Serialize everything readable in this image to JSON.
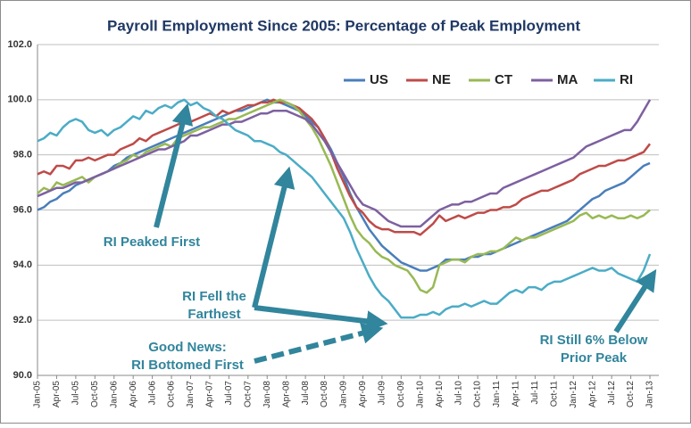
{
  "chart_data": {
    "type": "line",
    "title": "Payroll Employment Since 2005: Percentage of Peak Employment",
    "categories": [
      "Jan-05",
      null,
      null,
      "Apr-05",
      null,
      null,
      "Jul-05",
      null,
      null,
      "Oct-05",
      null,
      null,
      "Jan-06",
      null,
      null,
      "Apr-06",
      null,
      null,
      "Jul-06",
      null,
      null,
      "Oct-06",
      null,
      null,
      "Jan-07",
      null,
      null,
      "Apr-07",
      null,
      null,
      "Jul-07",
      null,
      null,
      "Oct-07",
      null,
      null,
      "Jan-08",
      null,
      null,
      "Apr-08",
      null,
      null,
      "Jul-08",
      null,
      null,
      "Oct-08",
      null,
      null,
      "Jan-09",
      null,
      null,
      "Apr-09",
      null,
      null,
      "Jul-09",
      null,
      null,
      "Oct-09",
      null,
      null,
      "Jan-10",
      null,
      null,
      "Apr-10",
      null,
      null,
      "Jul-10",
      null,
      null,
      "Oct-10",
      null,
      null,
      "Jan-11",
      null,
      null,
      "Apr-11",
      null,
      null,
      "Jul-11",
      null,
      null,
      "Oct-11",
      null,
      null,
      "Jan-12",
      null,
      null,
      "Apr-12",
      null,
      null,
      "Jul-12",
      null,
      null,
      "Oct-12",
      null,
      null,
      "Jan-13"
    ],
    "series": [
      {
        "name": "US",
        "color": "#4a7ebb",
        "values": [
          96.0,
          96.1,
          96.3,
          96.4,
          96.6,
          96.7,
          96.9,
          97.0,
          97.1,
          97.2,
          97.3,
          97.4,
          97.6,
          97.7,
          97.9,
          98.0,
          98.1,
          98.2,
          98.3,
          98.4,
          98.5,
          98.6,
          98.7,
          98.8,
          98.9,
          99.0,
          99.1,
          99.2,
          99.3,
          99.4,
          99.5,
          99.6,
          99.6,
          99.7,
          99.8,
          99.9,
          100.0,
          99.9,
          99.9,
          99.8,
          99.7,
          99.6,
          99.4,
          99.2,
          99.0,
          98.6,
          98.2,
          97.7,
          97.2,
          96.6,
          96.1,
          95.7,
          95.3,
          95.0,
          94.7,
          94.5,
          94.3,
          94.1,
          94.0,
          93.9,
          93.8,
          93.8,
          93.9,
          94.0,
          94.2,
          94.2,
          94.2,
          94.2,
          94.3,
          94.3,
          94.4,
          94.4,
          94.5,
          94.6,
          94.7,
          94.8,
          94.9,
          95.0,
          95.1,
          95.2,
          95.3,
          95.4,
          95.5,
          95.6,
          95.8,
          96.0,
          96.2,
          96.4,
          96.5,
          96.7,
          96.8,
          96.9,
          97.0,
          97.2,
          97.4,
          97.6,
          97.7
        ]
      },
      {
        "name": "NE",
        "color": "#be4b48",
        "values": [
          97.3,
          97.4,
          97.3,
          97.6,
          97.6,
          97.5,
          97.8,
          97.8,
          97.9,
          97.8,
          97.9,
          98.0,
          98.0,
          98.2,
          98.3,
          98.4,
          98.6,
          98.5,
          98.7,
          98.8,
          98.9,
          99.0,
          99.1,
          99.2,
          99.2,
          99.3,
          99.4,
          99.5,
          99.4,
          99.6,
          99.5,
          99.6,
          99.7,
          99.8,
          99.8,
          99.9,
          99.9,
          100.0,
          99.9,
          99.9,
          99.8,
          99.7,
          99.5,
          99.3,
          99.0,
          98.6,
          98.1,
          97.5,
          97.0,
          96.5,
          96.1,
          95.9,
          95.6,
          95.4,
          95.3,
          95.3,
          95.2,
          95.2,
          95.2,
          95.2,
          95.1,
          95.3,
          95.5,
          95.8,
          95.6,
          95.7,
          95.8,
          95.7,
          95.8,
          95.9,
          95.9,
          96.0,
          96.0,
          96.1,
          96.1,
          96.2,
          96.4,
          96.5,
          96.6,
          96.7,
          96.7,
          96.8,
          96.9,
          97.0,
          97.1,
          97.3,
          97.4,
          97.5,
          97.6,
          97.6,
          97.7,
          97.8,
          97.8,
          97.9,
          98.0,
          98.1,
          98.4
        ]
      },
      {
        "name": "CT",
        "color": "#98b954",
        "values": [
          96.6,
          96.8,
          96.7,
          97.0,
          96.9,
          97.0,
          97.1,
          97.2,
          97.0,
          97.2,
          97.3,
          97.4,
          97.5,
          97.7,
          97.8,
          98.0,
          97.9,
          98.1,
          98.2,
          98.3,
          98.4,
          98.3,
          98.6,
          98.7,
          98.8,
          98.9,
          99.0,
          99.0,
          99.1,
          99.2,
          99.3,
          99.3,
          99.4,
          99.5,
          99.6,
          99.7,
          99.8,
          99.9,
          100.0,
          99.9,
          99.8,
          99.6,
          99.3,
          99.0,
          98.6,
          98.1,
          97.6,
          97.0,
          96.4,
          95.8,
          95.3,
          95.0,
          94.8,
          94.5,
          94.3,
          94.2,
          94.0,
          93.9,
          93.8,
          93.5,
          93.1,
          93.0,
          93.2,
          94.0,
          94.1,
          94.2,
          94.2,
          94.1,
          94.3,
          94.4,
          94.4,
          94.5,
          94.5,
          94.6,
          94.8,
          95.0,
          94.9,
          95.0,
          95.0,
          95.1,
          95.2,
          95.3,
          95.4,
          95.5,
          95.6,
          95.8,
          95.9,
          95.7,
          95.8,
          95.7,
          95.8,
          95.7,
          95.7,
          95.8,
          95.7,
          95.8,
          96.0
        ]
      },
      {
        "name": "MA",
        "color": "#7d60a0",
        "values": [
          96.5,
          96.6,
          96.7,
          96.8,
          96.8,
          96.9,
          97.0,
          97.0,
          97.1,
          97.2,
          97.3,
          97.4,
          97.5,
          97.6,
          97.7,
          97.8,
          97.9,
          98.0,
          98.1,
          98.2,
          98.2,
          98.3,
          98.4,
          98.5,
          98.7,
          98.7,
          98.8,
          98.9,
          99.0,
          99.1,
          99.1,
          99.2,
          99.2,
          99.3,
          99.4,
          99.5,
          99.5,
          99.6,
          99.6,
          99.6,
          99.5,
          99.4,
          99.3,
          99.1,
          98.8,
          98.5,
          98.1,
          97.7,
          97.3,
          96.9,
          96.5,
          96.2,
          96.1,
          96.0,
          95.8,
          95.6,
          95.5,
          95.4,
          95.4,
          95.4,
          95.4,
          95.6,
          95.8,
          96.0,
          96.1,
          96.2,
          96.2,
          96.3,
          96.3,
          96.4,
          96.5,
          96.6,
          96.6,
          96.8,
          96.9,
          97.0,
          97.1,
          97.2,
          97.3,
          97.4,
          97.5,
          97.6,
          97.7,
          97.8,
          97.9,
          98.1,
          98.3,
          98.4,
          98.5,
          98.6,
          98.7,
          98.8,
          98.9,
          98.9,
          99.2,
          99.6,
          100.0
        ]
      },
      {
        "name": "RI",
        "color": "#4bacc6",
        "values": [
          98.5,
          98.6,
          98.8,
          98.7,
          99.0,
          99.2,
          99.3,
          99.2,
          98.9,
          98.8,
          98.9,
          98.7,
          98.9,
          99.0,
          99.2,
          99.4,
          99.3,
          99.6,
          99.5,
          99.7,
          99.8,
          99.7,
          99.9,
          100.0,
          99.8,
          99.9,
          99.7,
          99.6,
          99.4,
          99.3,
          99.1,
          98.9,
          98.8,
          98.7,
          98.5,
          98.5,
          98.4,
          98.3,
          98.1,
          98.0,
          97.8,
          97.6,
          97.4,
          97.2,
          96.9,
          96.6,
          96.3,
          96.0,
          95.7,
          95.2,
          94.6,
          94.1,
          93.6,
          93.2,
          92.9,
          92.7,
          92.4,
          92.1,
          92.1,
          92.1,
          92.2,
          92.2,
          92.3,
          92.2,
          92.4,
          92.5,
          92.5,
          92.6,
          92.5,
          92.6,
          92.7,
          92.6,
          92.6,
          92.8,
          93.0,
          93.1,
          93.0,
          93.2,
          93.2,
          93.1,
          93.3,
          93.4,
          93.4,
          93.5,
          93.6,
          93.7,
          93.8,
          93.9,
          93.8,
          93.8,
          93.9,
          93.7,
          93.6,
          93.5,
          93.4,
          93.8,
          94.4
        ]
      }
    ],
    "ylim": [
      90,
      102
    ],
    "yticks": [
      {
        "value": 90,
        "label": "90.0"
      },
      {
        "value": 92,
        "label": "92.0"
      },
      {
        "value": 94,
        "label": "94.0"
      },
      {
        "value": 96,
        "label": "96.0"
      },
      {
        "value": 98,
        "label": "98.0"
      },
      {
        "value": 100,
        "label": "100.0"
      },
      {
        "value": 102,
        "label": "102.0"
      }
    ],
    "grid": true,
    "legend": "top-right",
    "annotations": [
      {
        "lines": [
          "RI Peaked First"
        ]
      },
      {
        "lines": [
          "RI Fell the",
          "Farthest"
        ]
      },
      {
        "lines": [
          "Good News:",
          "RI Bottomed First"
        ]
      },
      {
        "lines": [
          "RI Still 6% Below",
          "Prior Peak"
        ]
      }
    ]
  }
}
